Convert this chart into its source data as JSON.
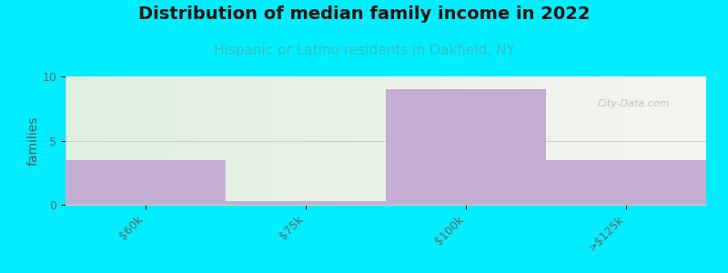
{
  "title": "Distribution of median family income in 2022",
  "subtitle": "Hispanic or Latino residents in Oakfield, NY",
  "categories": [
    "$60k",
    "$75k",
    "$100k",
    ">$125k"
  ],
  "values": [
    3.5,
    0.3,
    9,
    3.5
  ],
  "bar_color": "#c4aed4",
  "bar_edgecolor": "#c4aed4",
  "ylabel": "families",
  "ylim": [
    0,
    10
  ],
  "yticks": [
    0,
    5,
    10
  ],
  "background_color": "#00eeff",
  "plot_bg_left": "#ddf0dd",
  "plot_bg_right": "#f5f5f0",
  "title_fontsize": 14,
  "subtitle_fontsize": 11,
  "subtitle_color": "#3bbcbc",
  "ylabel_color": "#555555",
  "tick_color": "#666666",
  "watermark": "City-Data.com",
  "bar_width": 1.0
}
